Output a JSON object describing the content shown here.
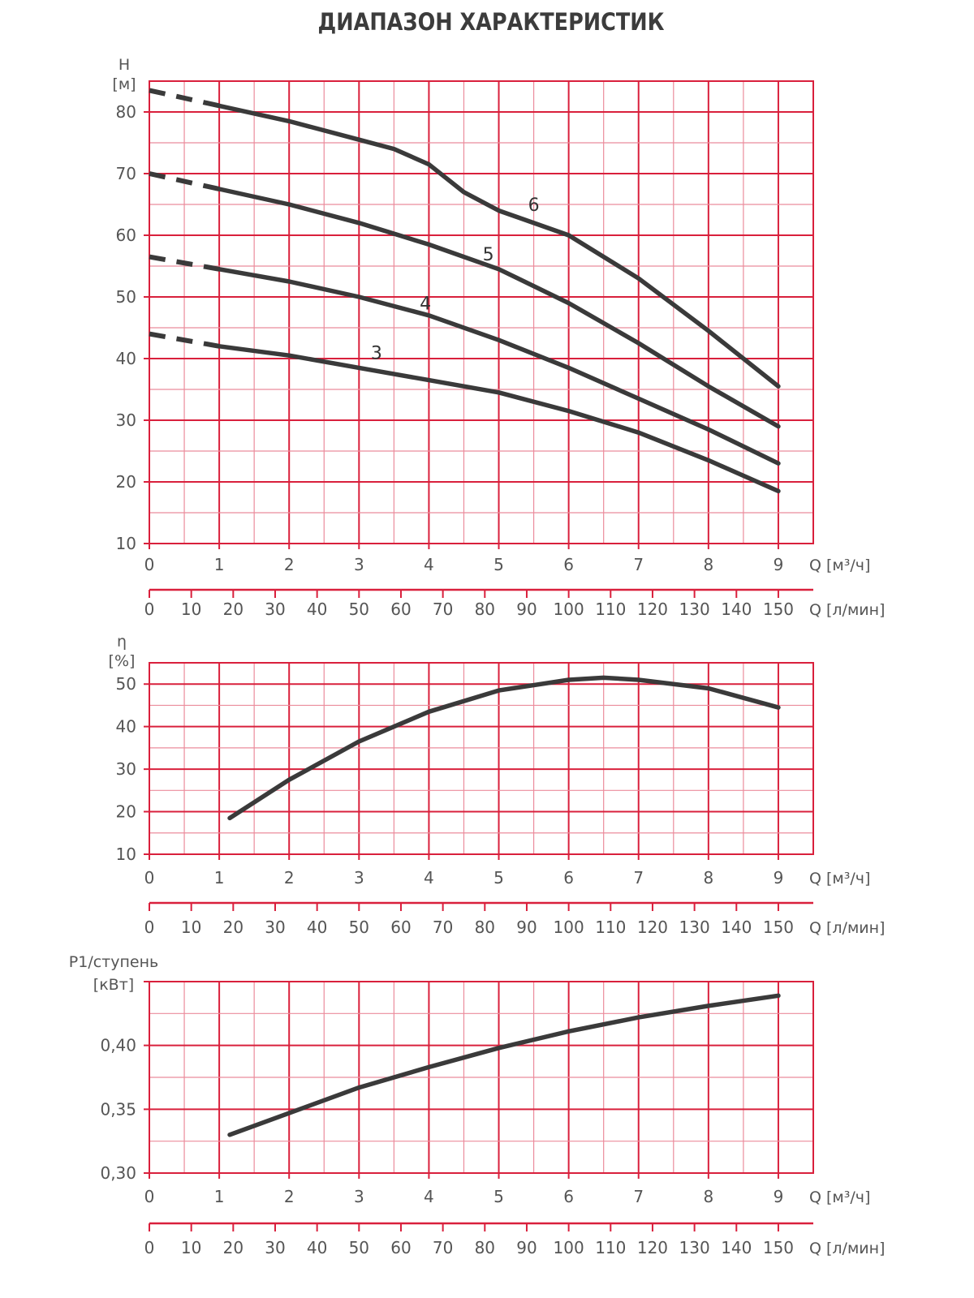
{
  "title": "ДИАПАЗОН ХАРАКТЕРИСТИК",
  "colors": {
    "grid_major": "#d9203c",
    "grid_minor": "#eb8c9c",
    "curve": "#3a3a3a",
    "text": "#555555"
  },
  "chart_data": [
    {
      "type": "line",
      "ylabel": "H",
      "yunit": "[м]",
      "xlabel": "Q [м³/ч]",
      "x2label": "Q [л/мин]",
      "xlim": [
        0,
        9.5
      ],
      "ylim": [
        10,
        85
      ],
      "yticks": [
        10,
        20,
        30,
        40,
        50,
        60,
        70,
        80
      ],
      "ytick_labels": [
        "10",
        "20",
        "30",
        "40",
        "50",
        "60",
        "70",
        "80"
      ],
      "xticks": [
        "0",
        "1",
        "2",
        "3",
        "4",
        "5",
        "6",
        "7",
        "8",
        "9"
      ],
      "x2ticks": [
        "0",
        "10",
        "20",
        "30",
        "40",
        "50",
        "60",
        "70",
        "80",
        "90",
        "100",
        "110",
        "120",
        "130",
        "140",
        "150"
      ],
      "grid": true,
      "dashed_until_x": 1,
      "series": [
        {
          "name": "6",
          "label_at": [
            5.5,
            65
          ],
          "x": [
            0,
            1,
            2,
            3,
            3.5,
            4,
            4.5,
            5,
            6,
            7,
            8,
            9
          ],
          "y": [
            83.5,
            81,
            78.5,
            75.5,
            74,
            71.5,
            67,
            64,
            60,
            53,
            44.5,
            35.5
          ]
        },
        {
          "name": "5",
          "label_at": [
            4.85,
            57
          ],
          "x": [
            0,
            1,
            2,
            3,
            4,
            5,
            6,
            7,
            8,
            9
          ],
          "y": [
            70,
            67.5,
            65,
            62,
            58.5,
            54.5,
            49,
            42.5,
            35.5,
            29
          ]
        },
        {
          "name": "4",
          "label_at": [
            3.95,
            49
          ],
          "x": [
            0,
            1,
            2,
            3,
            4,
            5,
            6,
            7,
            8,
            9
          ],
          "y": [
            56.5,
            54.5,
            52.5,
            50,
            47,
            43,
            38.5,
            33.5,
            28.5,
            23
          ]
        },
        {
          "name": "3",
          "label_at": [
            3.25,
            41
          ],
          "x": [
            0,
            1,
            2,
            3,
            4,
            5,
            6,
            7,
            8,
            9
          ],
          "y": [
            44,
            42,
            40.5,
            38.5,
            36.5,
            34.5,
            31.5,
            28,
            23.5,
            18.5
          ]
        }
      ]
    },
    {
      "type": "line",
      "ylabel": "η",
      "yunit": "[%]",
      "xlabel": "Q [м³/ч]",
      "x2label": "Q [л/мин]",
      "xlim": [
        0,
        9.5
      ],
      "ylim": [
        10,
        55
      ],
      "yticks": [
        10,
        20,
        30,
        40,
        50
      ],
      "ytick_labels": [
        "10",
        "20",
        "30",
        "40",
        "50"
      ],
      "xticks": [
        "0",
        "1",
        "2",
        "3",
        "4",
        "5",
        "6",
        "7",
        "8",
        "9"
      ],
      "x2ticks": [
        "0",
        "10",
        "20",
        "30",
        "40",
        "50",
        "60",
        "70",
        "80",
        "90",
        "100",
        "110",
        "120",
        "130",
        "140",
        "150"
      ],
      "grid": true,
      "series": [
        {
          "name": "efficiency",
          "x": [
            1.15,
            2,
            3,
            4,
            5,
            6,
            6.5,
            7,
            8,
            9
          ],
          "y": [
            18.5,
            27.5,
            36.5,
            43.5,
            48.5,
            51,
            51.5,
            51,
            49,
            44.5
          ]
        }
      ]
    },
    {
      "type": "line",
      "ylabel": "P1/ступень",
      "yunit": "[кВт]",
      "xlabel": "Q [м³/ч]",
      "x2label": "Q [л/мин]",
      "xlim": [
        0,
        9.5
      ],
      "ylim": [
        0.3,
        0.45
      ],
      "yticks": [
        0.3,
        0.35,
        0.4
      ],
      "ytick_labels": [
        "0,30",
        "0,35",
        "0,40"
      ],
      "xticks": [
        "0",
        "1",
        "2",
        "3",
        "4",
        "5",
        "6",
        "7",
        "8",
        "9"
      ],
      "x2ticks": [
        "0",
        "10",
        "20",
        "30",
        "40",
        "50",
        "60",
        "70",
        "80",
        "90",
        "100",
        "110",
        "120",
        "130",
        "140",
        "150"
      ],
      "grid": true,
      "series": [
        {
          "name": "power",
          "x": [
            1.15,
            2,
            3,
            4,
            5,
            6,
            7,
            8,
            9
          ],
          "y": [
            0.33,
            0.347,
            0.367,
            0.383,
            0.398,
            0.411,
            0.422,
            0.431,
            0.439
          ]
        }
      ]
    }
  ]
}
